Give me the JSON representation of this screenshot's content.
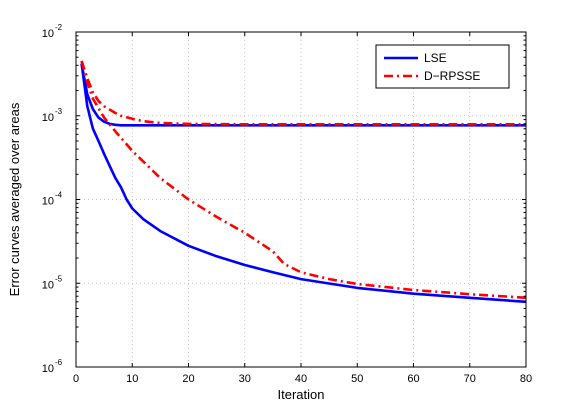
{
  "chart_data": {
    "type": "line",
    "xlabel": "Iteration",
    "ylabel": "Error curves averaged over areas",
    "xlim": [
      0,
      80
    ],
    "ylim": [
      1e-06,
      0.01
    ],
    "yscale": "log",
    "grid": true,
    "legend_position": "top-right",
    "x_ticks": [
      "0",
      "10",
      "20",
      "30",
      "40",
      "50",
      "60",
      "70",
      "80"
    ],
    "y_ticks": [
      {
        "base": "10",
        "exp": "-6"
      },
      {
        "base": "10",
        "exp": "-5"
      },
      {
        "base": "10",
        "exp": "-4"
      },
      {
        "base": "10",
        "exp": "-3"
      },
      {
        "base": "10",
        "exp": "-2"
      }
    ],
    "series": [
      {
        "name": "LSE",
        "color": "#0000ff",
        "style": "solid",
        "curves": [
          {
            "x": [
              1,
              2,
              3,
              4,
              5,
              6,
              7,
              8,
              10,
              15,
              20,
              40,
              60,
              80
            ],
            "y": [
              0.0042,
              0.0018,
              0.0012,
              0.00095,
              0.00085,
              0.0008,
              0.00078,
              0.00077,
              0.00077,
              0.00077,
              0.00077,
              0.00077,
              0.00077,
              0.00077
            ]
          },
          {
            "x": [
              1,
              2,
              3,
              4,
              5,
              6,
              7,
              8,
              9,
              10,
              12,
              15,
              20,
              25,
              30,
              35,
              40,
              50,
              60,
              70,
              80
            ],
            "y": [
              0.0042,
              0.0013,
              0.0007,
              0.0005,
              0.00035,
              0.00025,
              0.00018,
              0.00014,
              0.0001,
              7.8e-05,
              5.8e-05,
              4.2e-05,
              2.8e-05,
              2.1e-05,
              1.65e-05,
              1.35e-05,
              1.12e-05,
              8.8e-06,
              7.5e-06,
              6.7e-06,
              6e-06
            ]
          }
        ]
      },
      {
        "name": "D−RPSSE",
        "color": "#ff0000",
        "style": "dash-dot",
        "curves": [
          {
            "x": [
              1,
              2,
              3,
              4,
              5,
              6,
              7,
              8,
              10,
              12,
              15,
              20,
              30,
              40,
              60,
              80
            ],
            "y": [
              0.0045,
              0.0028,
              0.0019,
              0.0015,
              0.0013,
              0.00118,
              0.00108,
              0.001,
              0.00092,
              0.00086,
              0.00082,
              0.0008,
              0.00079,
              0.00079,
              0.00079,
              0.00079
            ]
          },
          {
            "x": [
              1,
              2,
              3,
              5,
              7,
              10,
              15,
              20,
              25,
              30,
              35,
              37,
              40,
              45,
              50,
              60,
              70,
              80
            ],
            "y": [
              0.0045,
              0.0025,
              0.0016,
              0.00095,
              0.00065,
              0.00038,
              0.00018,
              0.0001,
              6.2e-05,
              4e-05,
              2.4e-05,
              1.7e-05,
              1.35e-05,
              1.12e-05,
              9.8e-06,
              8.3e-06,
              7.4e-06,
              6.7e-06
            ]
          }
        ]
      }
    ]
  }
}
